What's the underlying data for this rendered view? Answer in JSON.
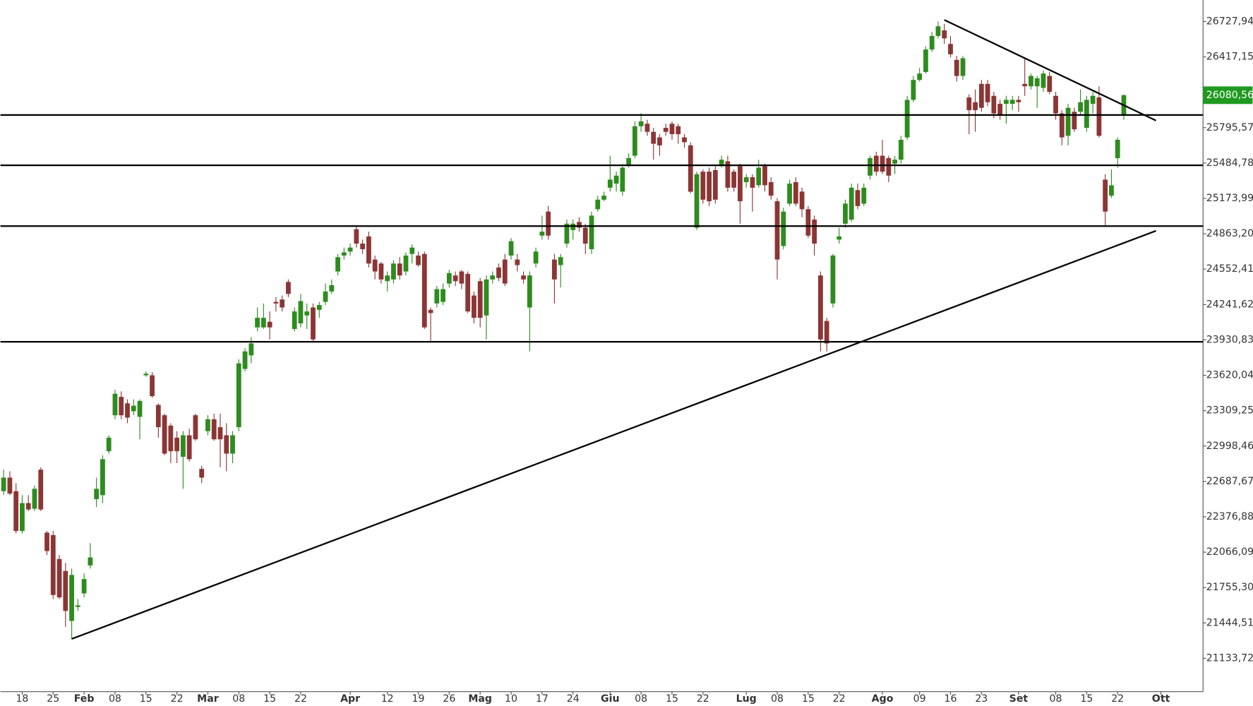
{
  "chart_data": {
    "type": "candlestick",
    "up_color": "#2e8b1f",
    "down_color": "#8c3535",
    "line_color": "#000000",
    "ylim": [
      20841,
      26917
    ],
    "yticks": [
      {
        "value": 26727.94,
        "label": "26727,94"
      },
      {
        "value": 26417.15,
        "label": "26417,15"
      },
      {
        "value": 25795.57,
        "label": "25795,57"
      },
      {
        "value": 25484.78,
        "label": "25484,78"
      },
      {
        "value": 25173.99,
        "label": "25173,99"
      },
      {
        "value": 24863.2,
        "label": "24863,20"
      },
      {
        "value": 24552.41,
        "label": "24552,41"
      },
      {
        "value": 24241.62,
        "label": "24241,62"
      },
      {
        "value": 23930.83,
        "label": "23930,83"
      },
      {
        "value": 23620.04,
        "label": "23620,04"
      },
      {
        "value": 23309.25,
        "label": "23309,25"
      },
      {
        "value": 22998.46,
        "label": "22998,46"
      },
      {
        "value": 22687.67,
        "label": "22687,67"
      },
      {
        "value": 22376.88,
        "label": "22376,88"
      },
      {
        "value": 22066.09,
        "label": "22066,09"
      },
      {
        "value": 21755.3,
        "label": "21755,30"
      },
      {
        "value": 21444.51,
        "label": "21444,51"
      },
      {
        "value": 21133.72,
        "label": "21133,72"
      }
    ],
    "last_price": {
      "value": 26080.56,
      "label": "26080,56",
      "color": "#1f9a1f"
    },
    "categories": [
      null,
      null,
      null,
      "18",
      null,
      null,
      null,
      null,
      "25",
      null,
      null,
      null,
      null,
      "Feb",
      null,
      null,
      null,
      null,
      "08",
      null,
      null,
      null,
      null,
      "15",
      null,
      null,
      null,
      null,
      "22",
      null,
      null,
      null,
      null,
      "Mar",
      null,
      null,
      null,
      null,
      "08",
      null,
      null,
      null,
      null,
      "15",
      null,
      null,
      null,
      null,
      "22",
      null,
      null,
      null,
      null,
      null,
      null,
      null,
      "Apr",
      null,
      null,
      null,
      null,
      null,
      "12",
      null,
      null,
      null,
      null,
      "19",
      null,
      null,
      null,
      null,
      "26",
      null,
      null,
      null,
      null,
      "Mag",
      null,
      null,
      null,
      null,
      "10",
      null,
      null,
      null,
      null,
      "17",
      null,
      null,
      null,
      null,
      "24",
      null,
      null,
      null,
      null,
      null,
      "Giu",
      null,
      null,
      null,
      null,
      "08",
      null,
      null,
      null,
      null,
      "15",
      null,
      null,
      null,
      null,
      "22",
      null,
      null,
      null,
      null,
      null,
      null,
      "Lug",
      null,
      null,
      null,
      null,
      "08",
      null,
      null,
      null,
      null,
      "15",
      null,
      null,
      null,
      null,
      "22",
      null,
      null,
      null,
      null,
      null,
      null,
      "Ago",
      null,
      null,
      null,
      null,
      null,
      "09",
      null,
      null,
      null,
      null,
      "16",
      null,
      null,
      null,
      null,
      "23",
      null,
      null,
      null,
      null,
      null,
      "Set",
      null,
      null,
      null,
      null,
      null,
      "08",
      null,
      null,
      null,
      null,
      "15",
      null,
      null,
      null,
      null,
      "22",
      null,
      null,
      null,
      null,
      null,
      null,
      "Ott"
    ],
    "open": [
      22602,
      22721,
      22602,
      22252,
      22497,
      22448,
      22791,
      22238,
      22216,
      22006,
      21901,
      21462,
      21585,
      21704,
      21950,
      22532,
      22567,
      22953,
      23269,
      23430,
      23374,
      23304,
      23255,
      23620,
      23620,
      23360,
      23269,
      23178,
      23072,
      22904,
      23093,
      23269,
      22798,
      23129,
      23234,
      23164,
      23093,
      22932,
      23164,
      23676,
      23795,
      24041,
      24041,
      24090,
      24265,
      24286,
      24440,
      24027,
      24076,
      24146,
      24216,
      24195,
      24265,
      24356,
      24532,
      24672,
      24707,
      24904,
      24777,
      24840,
      24637,
      24602,
      24447,
      24462,
      24602,
      24532,
      24686,
      24672,
      24686,
      24195,
      24251,
      24265,
      24426,
      24497,
      24532,
      24511,
      24321,
      24447,
      24146,
      24462,
      24567,
      24637,
      24672,
      24637,
      24497,
      24216,
      24602,
      24847,
      25058,
      24637,
      24588,
      24777,
      24896,
      24967,
      24917,
      24728,
      25079,
      25163,
      25268,
      25304,
      25234,
      25458,
      25549,
      25808,
      25830,
      25759,
      25710,
      25794,
      25830,
      25808,
      25710,
      25640,
      24917,
      25409,
      25409,
      25423,
      25458,
      25500,
      25409,
      25458,
      25317,
      25360,
      25290,
      25458,
      25317,
      25149,
      24756,
      25128,
      25317,
      25234,
      25079,
      24988,
      24497,
      24097,
      24251,
      24812,
      24952,
      24988,
      25247,
      25128,
      25374,
      25549,
      25549,
      25528,
      25479,
      25514,
      25710,
      26040,
      26215,
      26285,
      26482,
      26601,
      26650,
      26531,
      26391,
      26250,
      26061,
      26019,
      26180,
      26180,
      26075,
      26005,
      26005,
      26005,
      26040,
      26180,
      26159,
      26159,
      26145,
      26250,
      26075,
      25921,
      25724,
      25935,
      25935,
      25794,
      26005,
      26061,
      25339,
      25198,
      25528,
      25900,
      null,
      null,
      null,
      null,
      null,
      null
    ],
    "high": [
      22791,
      22777,
      22672,
      22567,
      22567,
      22651,
      22812,
      22252,
      22252,
      22041,
      21971,
      21922,
      21655,
      21880,
      22146,
      22721,
      22918,
      23093,
      23493,
      23479,
      23409,
      23409,
      23409,
      23655,
      23648,
      23374,
      23283,
      23199,
      23129,
      23129,
      23150,
      23283,
      22826,
      23269,
      23283,
      23283,
      23199,
      23129,
      23760,
      23858,
      23956,
      24216,
      24251,
      24181,
      24307,
      24321,
      24462,
      24216,
      24335,
      24251,
      24251,
      24265,
      24426,
      24462,
      24686,
      24742,
      24777,
      24931,
      24812,
      24882,
      24672,
      24616,
      24532,
      24630,
      24658,
      24700,
      24770,
      24707,
      24707,
      24216,
      24405,
      24426,
      24546,
      24532,
      24546,
      24532,
      24356,
      24475,
      24497,
      24532,
      24602,
      24686,
      24826,
      24686,
      24532,
      24532,
      24742,
      25023,
      25107,
      24686,
      24686,
      24988,
      24988,
      25009,
      24952,
      25058,
      25198,
      25234,
      25549,
      25409,
      25479,
      25570,
      25851,
      25921,
      25865,
      25794,
      25738,
      25830,
      25851,
      25830,
      25738,
      25668,
      25409,
      25430,
      25444,
      25458,
      25549,
      25549,
      25430,
      25479,
      25387,
      25387,
      25514,
      25479,
      25360,
      25177,
      25093,
      25339,
      25360,
      25268,
      25107,
      25023,
      24532,
      24125,
      24686,
      24917,
      25163,
      25304,
      25304,
      25304,
      25549,
      25584,
      25689,
      25549,
      25549,
      25724,
      26075,
      26250,
      26321,
      26510,
      26636,
      26728,
      26707,
      26601,
      26426,
      26426,
      26089,
      26131,
      26215,
      26215,
      26110,
      26040,
      26075,
      26075,
      26075,
      26412,
      26271,
      26250,
      26299,
      26285,
      26110,
      25949,
      26005,
      25970,
      26131,
      26075,
      26110,
      26159,
      25387,
      25430,
      25710,
      26089,
      null,
      null,
      null,
      null,
      null,
      null
    ],
    "low": [
      22567,
      22567,
      22231,
      22231,
      22427,
      22427,
      22427,
      22041,
      21655,
      21655,
      21409,
      21304,
      21550,
      21669,
      21922,
      22462,
      22497,
      22932,
      23234,
      23234,
      23199,
      23269,
      23058,
      23606,
      23423,
      23072,
      22918,
      22848,
      22848,
      22623,
      22862,
      23044,
      22672,
      23093,
      23044,
      22812,
      22777,
      22848,
      23129,
      23655,
      23725,
      24006,
      24027,
      23935,
      24181,
      24181,
      24307,
      24006,
      24041,
      24027,
      23914,
      24125,
      24237,
      24335,
      24497,
      24637,
      24672,
      24742,
      24686,
      24567,
      24462,
      24426,
      24356,
      24426,
      24462,
      24497,
      24602,
      24574,
      24027,
      23914,
      24216,
      24237,
      24391,
      24405,
      24377,
      24167,
      24076,
      24041,
      23935,
      24426,
      24447,
      24405,
      24637,
      24532,
      24426,
      23830,
      24567,
      24812,
      24812,
      24251,
      24391,
      24742,
      24812,
      24882,
      24686,
      24686,
      25058,
      25149,
      25234,
      25234,
      25198,
      25444,
      25528,
      25759,
      25724,
      25514,
      25549,
      25724,
      25689,
      25654,
      25619,
      25219,
      24896,
      25128,
      25107,
      25128,
      25444,
      25234,
      25234,
      24952,
      25268,
      25058,
      25268,
      25234,
      25163,
      24462,
      24728,
      25107,
      25107,
      25009,
      24826,
      24672,
      23830,
      23830,
      24216,
      24777,
      24917,
      24967,
      25079,
      25107,
      25339,
      25374,
      25387,
      25317,
      25387,
      25479,
      25689,
      26019,
      26201,
      26271,
      26461,
      26580,
      26531,
      26412,
      26201,
      26215,
      25738,
      25759,
      25935,
      25984,
      25879,
      25865,
      25830,
      25949,
      25935,
      26075,
      26131,
      25970,
      26110,
      26089,
      25865,
      25640,
      25640,
      25759,
      25900,
      25759,
      25921,
      25710,
      24938,
      25177,
      25444,
      25865,
      null,
      null,
      null,
      null,
      null,
      null
    ],
    "close": [
      22721,
      22581,
      22252,
      22497,
      22441,
      22623,
      22441,
      22076,
      21690,
      21669,
      21550,
      21866,
      21599,
      21830,
      22020,
      22623,
      22883,
      23072,
      23458,
      23269,
      23248,
      23353,
      23395,
      23634,
      23437,
      23164,
      22932,
      22953,
      22953,
      23093,
      22883,
      23058,
      22721,
      23234,
      23058,
      23058,
      22932,
      23093,
      23725,
      23830,
      23900,
      24125,
      24125,
      24041,
      24251,
      24216,
      24335,
      24181,
      24272,
      24181,
      23935,
      24237,
      24356,
      24412,
      24658,
      24700,
      24742,
      24777,
      24728,
      24602,
      24532,
      24462,
      24497,
      24602,
      24497,
      24672,
      24742,
      24588,
      24041,
      24167,
      24377,
      24377,
      24518,
      24447,
      24426,
      24181,
      24125,
      24125,
      24462,
      24497,
      24475,
      24426,
      24798,
      24588,
      24462,
      24497,
      24707,
      24882,
      24847,
      24462,
      24658,
      24952,
      24952,
      24917,
      24777,
      25023,
      25163,
      25198,
      25339,
      25374,
      25444,
      25528,
      25808,
      25851,
      25759,
      25654,
      25640,
      25759,
      25738,
      25738,
      25668,
      25233,
      25387,
      25163,
      25149,
      25163,
      25514,
      25268,
      25268,
      25149,
      25360,
      25268,
      25444,
      25290,
      25198,
      24637,
      25058,
      25304,
      25128,
      25079,
      24847,
      24777,
      23935,
      23900,
      24672,
      24840,
      25128,
      25268,
      25107,
      25268,
      25528,
      25409,
      25409,
      25374,
      25514,
      25689,
      26040,
      26215,
      26271,
      26482,
      26601,
      26686,
      26580,
      26440,
      26250,
      26405,
      25949,
      25949,
      25970,
      26019,
      25921,
      25900,
      26040,
      26040,
      26019,
      26159,
      26250,
      26229,
      26271,
      26110,
      25921,
      25710,
      25970,
      25781,
      26019,
      26040,
      26075,
      25724,
      25058,
      25289,
      25689,
      26080.56,
      null,
      null,
      null,
      null,
      null,
      null
    ],
    "hlines": [
      25907,
      25465,
      24931,
      23914
    ],
    "trendlines": [
      {
        "x": [
          152,
          186.2
        ],
        "y": [
          26742,
          25858
        ]
      },
      {
        "x": [
          11,
          186.2
        ],
        "y": [
          21304,
          24889
        ]
      }
    ]
  }
}
